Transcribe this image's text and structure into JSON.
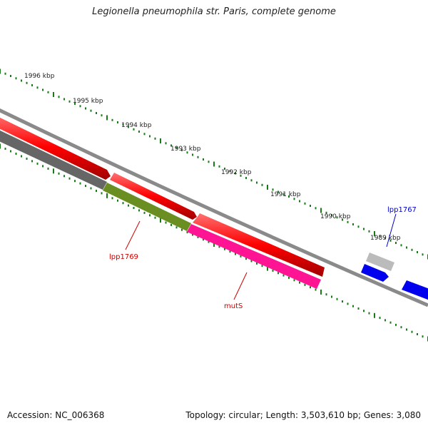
{
  "title": "Legionella pneumophila str. Paris, complete genome",
  "footer": {
    "accession": "Accession: NC_006368",
    "summary": "Topology: circular; Length: 3,503,610 bp; Genes: 3,080"
  },
  "ruler_labels": [
    "1996 kbp",
    "1995 kbp",
    "1994 kbp",
    "1993 kbp",
    "1992 kbp",
    "1991 kbp",
    "1990 kbp",
    "1989 kbp"
  ],
  "gene_labels": [
    {
      "name": "lpp1767",
      "color": "#0000cc"
    },
    {
      "name": "lpp1769",
      "color": "#cc0000"
    },
    {
      "name": "mutS",
      "color": "#cc0000"
    }
  ],
  "colors": {
    "backbone": "#8a8a8a",
    "cds": "#ff0000",
    "gene_blue": "#0000ee",
    "gene_gray": "#bbbbbb",
    "feature_olive": "#6b8e23",
    "feature_pink": "#ff1493",
    "feature_dark": "#666666",
    "ticks": "#1a7a1a"
  }
}
